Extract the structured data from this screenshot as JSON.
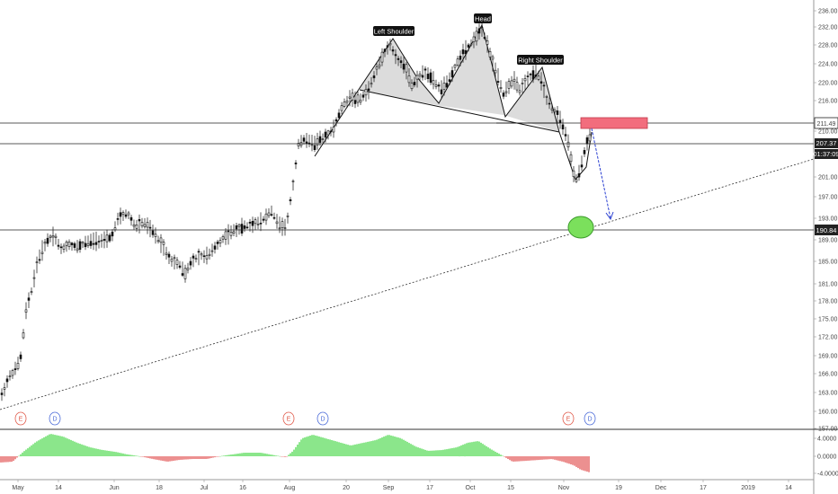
{
  "chart_data": {
    "type": "candlestick",
    "y_axis": {
      "scale": "log",
      "ticks": [
        "236.00",
        "232.00",
        "228.00",
        "224.00",
        "220.00",
        "216.00",
        "210.00",
        "205.00",
        "201.00",
        "197.00",
        "193.00",
        "189.00",
        "185.00",
        "181.00",
        "178.00",
        "175.00",
        "172.00",
        "169.00",
        "166.00",
        "163.00",
        "160.00",
        "157.00"
      ],
      "range": [
        157,
        238
      ]
    },
    "x_axis": {
      "ticks": [
        "May",
        "14",
        "Jun",
        "18",
        "Jul",
        "16",
        "Aug",
        "20",
        "Sep",
        "17",
        "Oct",
        "15",
        "Nov",
        "19",
        "Dec",
        "17",
        "2019",
        "14"
      ]
    },
    "price_labels": [
      {
        "name": "resistance",
        "value": "211.49",
        "style": "outline"
      },
      {
        "name": "last-price",
        "value": "207.37",
        "style": "dark"
      },
      {
        "name": "countdown",
        "value": "01:37:09",
        "style": "dark"
      },
      {
        "name": "support",
        "value": "190.84",
        "style": "dark"
      }
    ],
    "horizontal_lines": [
      211.49,
      207.37,
      190.84
    ],
    "annotations": [
      {
        "text": "Left Shoulder"
      },
      {
        "text": "Head"
      },
      {
        "text": "Right Shoulder"
      }
    ],
    "events": [
      "E",
      "D",
      "E",
      "D",
      "E",
      "D"
    ],
    "oscillator": {
      "ticks": [
        "4.0000",
        "0.0000",
        "-4.0000"
      ]
    },
    "colors": {
      "candle": "#111111",
      "pattern_fill": "#d6d6d6",
      "resistance_box": "#f26d7d",
      "target_circle": "#7be05c",
      "projection_arrow": "#2a3fd1",
      "osc_positive": "#3ed43e",
      "osc_negative": "#e04545",
      "earnings_marker": "#e05a4a",
      "dividend_marker": "#4a6ad8"
    }
  }
}
